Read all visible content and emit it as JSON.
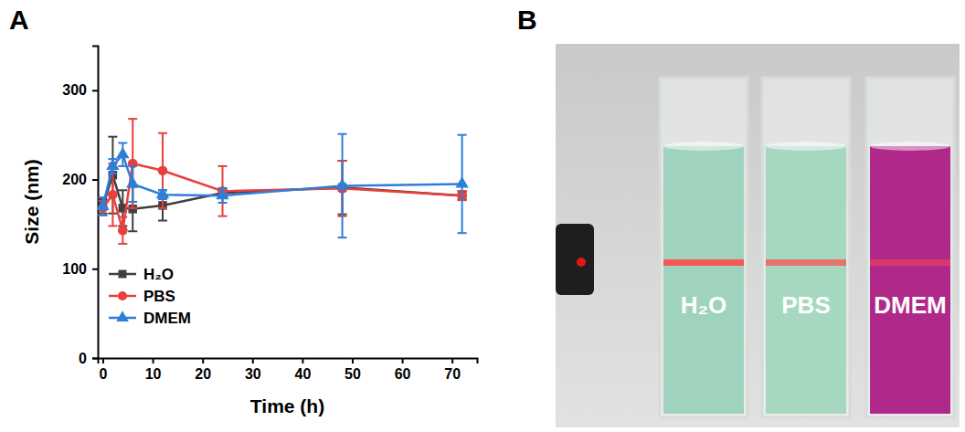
{
  "panel_labels": [
    "A",
    "B"
  ],
  "chart_data": {
    "type": "line",
    "x_label": "Time (h)",
    "y_label": "Size (nm)",
    "x": [
      0,
      2,
      4,
      6,
      12,
      24,
      48,
      72
    ],
    "xlim": [
      -1,
      75
    ],
    "xticks": [
      0,
      10,
      20,
      30,
      40,
      50,
      60,
      70
    ],
    "ylim": [
      0,
      350
    ],
    "yticks": [
      0,
      100,
      200,
      300
    ],
    "grid": false,
    "legend": "lower left",
    "series": [
      {
        "name": "H₂O",
        "color": "#404040",
        "marker": "square",
        "line_style": "solid",
        "values": [
          170,
          205,
          168,
          167,
          171,
          185,
          191,
          182
        ],
        "errors": [
          8,
          43,
          20,
          25,
          17,
          5,
          30,
          5
        ]
      },
      {
        "name": "PBS",
        "color": "#e8403c",
        "marker": "circle",
        "line_style": "solid",
        "values": [
          168,
          183,
          143,
          218,
          210,
          187,
          190,
          182
        ],
        "errors": [
          8,
          35,
          15,
          50,
          42,
          28,
          31,
          5
        ]
      },
      {
        "name": "DMEM",
        "color": "#2f7ed8",
        "marker": "triangle",
        "line_style": "solid",
        "values": [
          170,
          215,
          228,
          195,
          183,
          182,
          193,
          195
        ],
        "errors": [
          10,
          8,
          13,
          20,
          5,
          8,
          58,
          55
        ]
      }
    ]
  },
  "photo": {
    "cuvette_labels": [
      "H₂O",
      "PBS",
      "DMEM"
    ]
  }
}
